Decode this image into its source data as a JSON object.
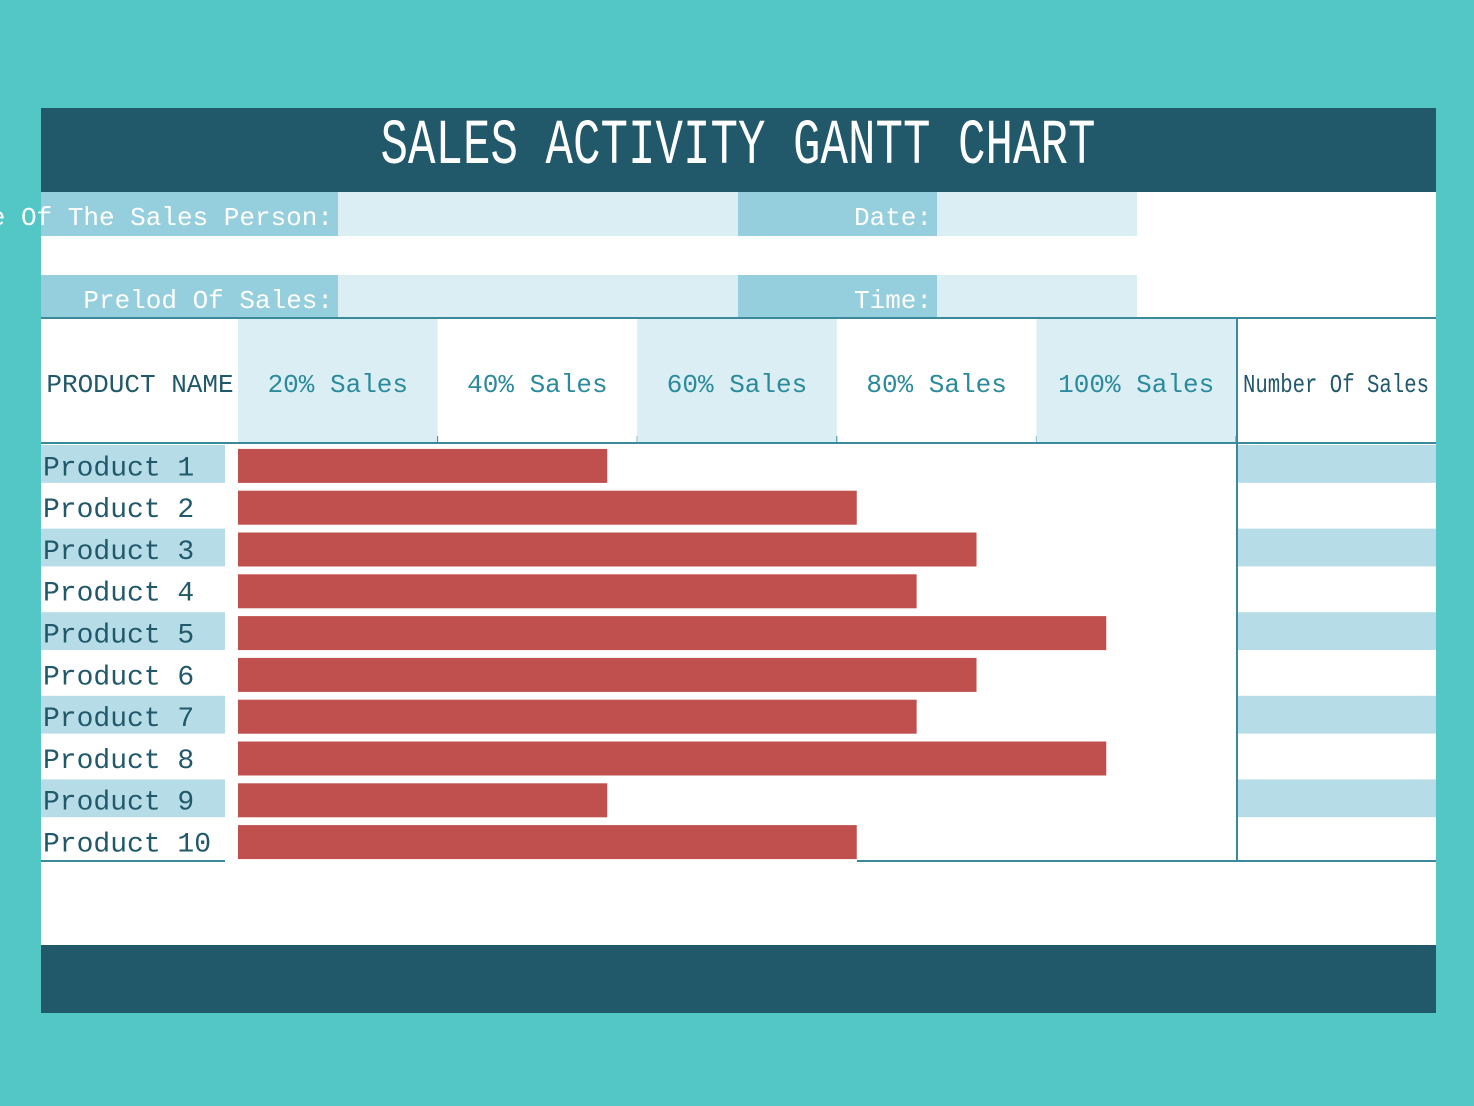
{
  "form": {
    "salesperson_label": "ame Of The Sales Person:",
    "date_label": "Date:",
    "period_label": "Prelod Of Sales:",
    "time_label": "Time:"
  },
  "chart_data": {
    "type": "bar",
    "title": "SALES ACTIVITY GANTT CHART",
    "ylabel": "PRODUCT NAME",
    "extra_column": "Number Of Sales",
    "categories": [
      "Product 1",
      "Product 2",
      "Product 3",
      "Product 4",
      "Product 5",
      "Product 6",
      "Product 7",
      "Product 8",
      "Product 9",
      "Product 10"
    ],
    "values": [
      37,
      62,
      74,
      68,
      87,
      74,
      68,
      87,
      37,
      62
    ],
    "color": "#c0504d",
    "xlim": [
      0,
      100
    ],
    "xticks": [
      {
        "value": 20,
        "label": "20% Sales"
      },
      {
        "value": 40,
        "label": "40% Sales"
      },
      {
        "value": 60,
        "label": "60% Sales"
      },
      {
        "value": 80,
        "label": "80% Sales"
      },
      {
        "value": 100,
        "label": "100% Sales"
      }
    ]
  }
}
